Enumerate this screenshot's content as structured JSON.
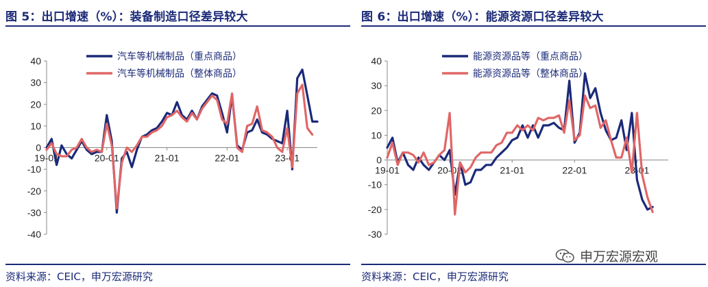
{
  "charts": [
    {
      "title": "图 5：出口增速（%）：装备制造口径差异较大",
      "source": "资料来源：CEIC，申万宏源研究",
      "chart_data": {
        "type": "line",
        "title": "图 5：出口增速（%）：装备制造口径差异较大",
        "yticks": [
          "40",
          "30",
          "20",
          "10",
          "0",
          "-10",
          "-20",
          "-30",
          "-40"
        ],
        "ylim": [
          -40,
          40
        ],
        "xticks": [
          {
            "label": "19-01",
            "x": 0
          },
          {
            "label": "20-01",
            "x": 12
          },
          {
            "label": "21-01",
            "x": 24
          },
          {
            "label": "22-01",
            "x": 36
          },
          {
            "label": "23-01",
            "x": 48
          }
        ],
        "xlim": [
          0,
          54
        ],
        "grid": false,
        "legend_position": "top",
        "series": [
          {
            "name": "汽车等机械制品（重点商品）",
            "color": "#1b2a78",
            "values": [
              0,
              4,
              -8,
              1,
              -3,
              -5,
              -1,
              3,
              -1,
              -3,
              -2,
              -2,
              15,
              3,
              -30,
              -5,
              -2,
              -9,
              -1,
              5,
              6,
              8,
              9,
              12,
              16,
              15,
              21,
              15,
              13,
              17,
              13,
              19,
              22,
              25,
              24,
              16,
              7,
              24,
              1,
              -1,
              7,
              8,
              13,
              7,
              6,
              4,
              3,
              2,
              17,
              -10,
              32,
              36,
              24,
              12,
              12
            ]
          },
          {
            "name": "汽车等机械制品（整体商品）",
            "color": "#e06666",
            "values": [
              -1,
              2,
              -3,
              -4,
              -4,
              -1,
              0,
              4,
              0,
              -2,
              -1,
              -2,
              11,
              1,
              -28,
              -7,
              0,
              -2,
              1,
              5,
              5,
              7,
              8,
              10,
              14,
              15,
              17,
              14,
              12,
              16,
              13,
              18,
              21,
              24,
              22,
              13,
              11,
              25,
              0,
              -2,
              10,
              11,
              19,
              8,
              7,
              5,
              0,
              -2,
              9,
              -9,
              25,
              29,
              9,
              6
            ]
          }
        ]
      }
    },
    {
      "title": "图 6：出口增速（%）：能源资源口径差异较大",
      "source": "资料来源：CEIC，申万宏源研究",
      "chart_data": {
        "type": "line",
        "title": "图 6：出口增速（%）：能源资源口径差异较大",
        "yticks": [
          "40",
          "30",
          "20",
          "10",
          "0",
          "-10",
          "-20",
          "-30"
        ],
        "ylim": [
          -30,
          40
        ],
        "xticks": [
          {
            "label": "19-01",
            "x": 0
          },
          {
            "label": "20-01",
            "x": 12
          },
          {
            "label": "21-01",
            "x": 24
          },
          {
            "label": "22-01",
            "x": 36
          },
          {
            "label": "23-01",
            "x": 48
          }
        ],
        "xlim": [
          0,
          54
        ],
        "grid": false,
        "legend_position": "top",
        "series": [
          {
            "name": "能源资源品等（重点商品）",
            "color": "#1b2a78",
            "values": [
              5,
              9,
              -1,
              3,
              -2,
              -4,
              1,
              -2,
              -4,
              -1,
              2,
              0,
              4,
              -14,
              -1,
              -10,
              -9,
              -4,
              -4,
              -2,
              -2,
              1,
              3,
              5,
              8,
              9,
              14,
              9,
              14,
              9,
              14,
              14,
              15,
              13,
              12,
              32,
              7,
              11,
              35,
              25,
              29,
              19,
              12,
              8,
              9,
              16,
              4,
              19,
              -8,
              -16,
              -20,
              -19
            ]
          },
          {
            "name": "能源资源品等（整体商品）",
            "color": "#e06666",
            "values": [
              1,
              7,
              -2,
              3,
              3,
              2,
              -1,
              3,
              -2,
              -1,
              2,
              4,
              19,
              -22,
              -1,
              -5,
              -3,
              1,
              3,
              3,
              3,
              6,
              7,
              11,
              11,
              14,
              12,
              14,
              12,
              17,
              16,
              17,
              17,
              18,
              11,
              24,
              8,
              10,
              26,
              21,
              22,
              13,
              16,
              8,
              1,
              1,
              9,
              -5,
              19,
              -6,
              -15,
              -21
            ]
          }
        ]
      }
    }
  ],
  "watermark": {
    "text": "申万宏源宏观",
    "icon": "wechat-icon"
  }
}
